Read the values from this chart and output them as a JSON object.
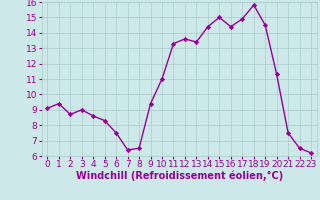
{
  "x": [
    0,
    1,
    2,
    3,
    4,
    5,
    6,
    7,
    8,
    9,
    10,
    11,
    12,
    13,
    14,
    15,
    16,
    17,
    18,
    19,
    20,
    21,
    22,
    23
  ],
  "y": [
    9.1,
    9.4,
    8.7,
    9.0,
    8.6,
    8.3,
    7.5,
    6.4,
    6.5,
    9.4,
    11.0,
    13.3,
    13.6,
    13.4,
    14.4,
    15.0,
    14.4,
    14.9,
    15.8,
    14.5,
    11.3,
    7.5,
    6.5,
    6.2
  ],
  "line_color": "#990099",
  "marker": "D",
  "marker_size": 2.2,
  "line_width": 1.0,
  "bg_color": "#cce8e8",
  "grid_color": "#aacccc",
  "xlabel": "Windchill (Refroidissement éolien,°C)",
  "xlabel_color": "#990099",
  "tick_color": "#990099",
  "ylim": [
    6,
    16
  ],
  "xlim_min": -0.5,
  "xlim_max": 23.5,
  "yticks": [
    6,
    7,
    8,
    9,
    10,
    11,
    12,
    13,
    14,
    15,
    16
  ],
  "xticks": [
    0,
    1,
    2,
    3,
    4,
    5,
    6,
    7,
    8,
    9,
    10,
    11,
    12,
    13,
    14,
    15,
    16,
    17,
    18,
    19,
    20,
    21,
    22,
    23
  ],
  "tick_fontsize": 6.5,
  "xlabel_fontsize": 7.0
}
